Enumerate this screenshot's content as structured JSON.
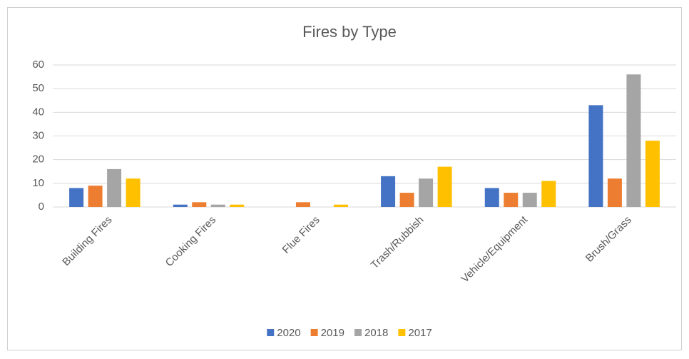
{
  "chart_data": {
    "type": "bar",
    "title": "Fires by Type",
    "categories": [
      "Building Fires",
      "Cooking Fires",
      "Flue Fires",
      "Trash/Rubbish",
      "Vehicle/Equipment",
      "Brush/Grass"
    ],
    "series": [
      {
        "name": "2020",
        "color": "#4472c4",
        "values": [
          8,
          1,
          0,
          13,
          8,
          43
        ]
      },
      {
        "name": "2019",
        "color": "#ed7d31",
        "values": [
          9,
          2,
          2,
          6,
          6,
          12
        ]
      },
      {
        "name": "2018",
        "color": "#a5a5a5",
        "values": [
          16,
          1,
          0,
          12,
          6,
          56
        ]
      },
      {
        "name": "2017",
        "color": "#ffc000",
        "values": [
          12,
          1,
          1,
          17,
          11,
          28
        ]
      }
    ],
    "ylim": [
      0,
      60
    ],
    "yticks": [
      0,
      10,
      20,
      30,
      40,
      50,
      60
    ],
    "grid": true,
    "legend": "bottom"
  }
}
